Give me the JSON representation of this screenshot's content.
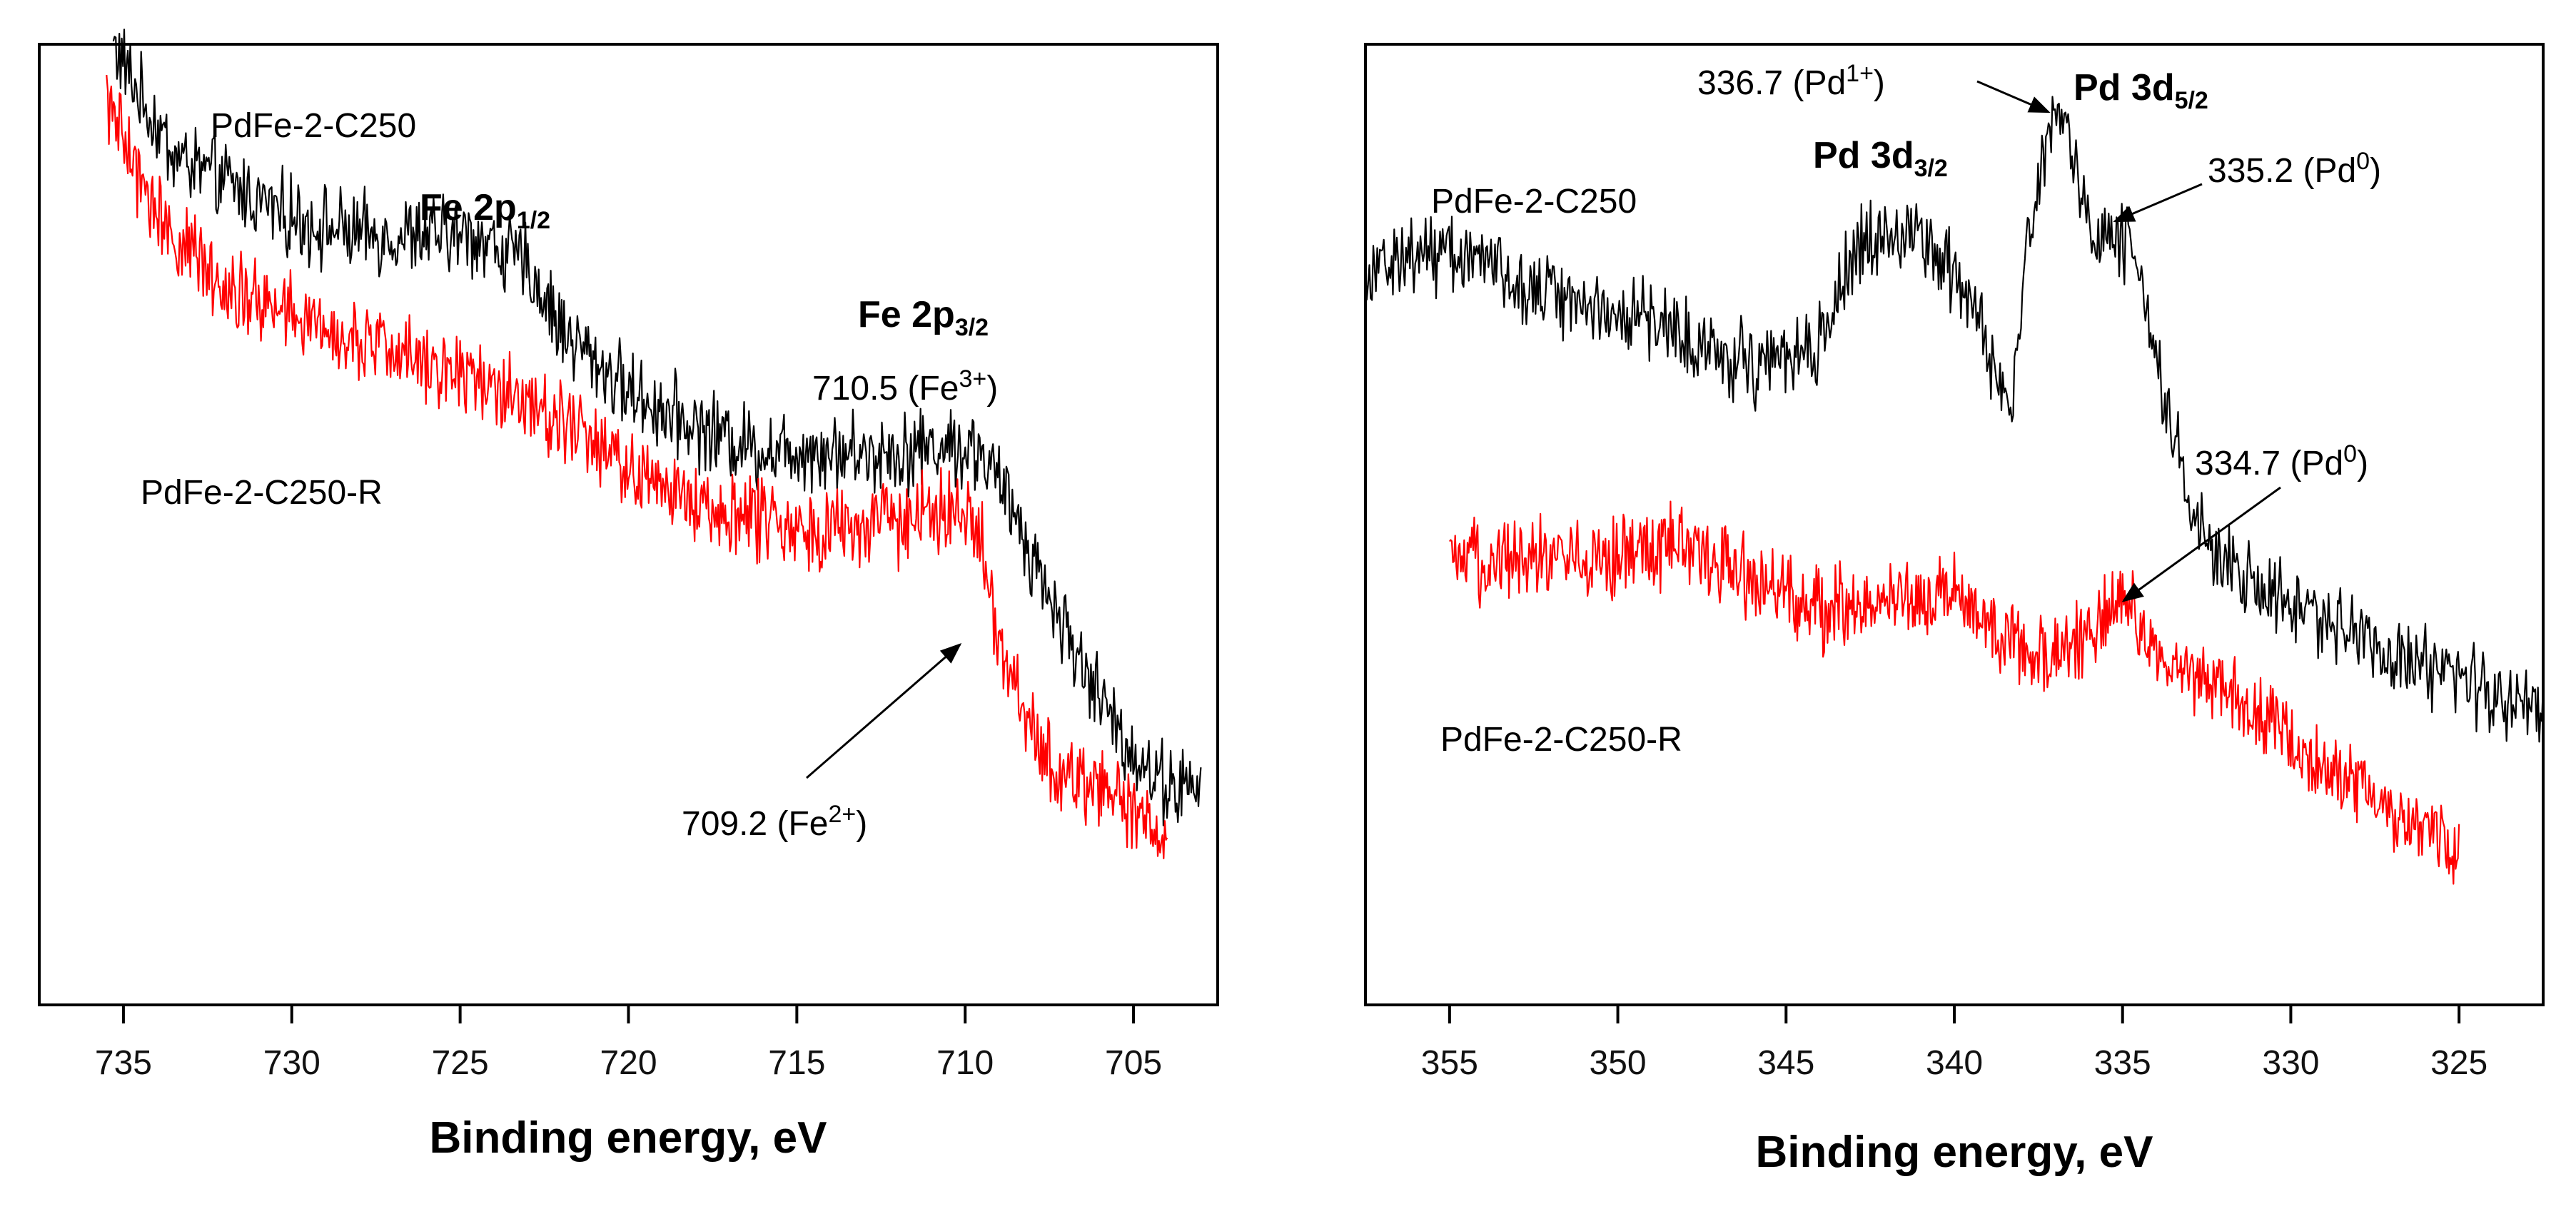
{
  "colors": {
    "black_series": "#000000",
    "red_series": "#ff0000"
  },
  "chart_data": [
    {
      "type": "line",
      "panel": "left",
      "title": "",
      "xlabel": "Binding energy, eV",
      "ylabel": "",
      "xlim": [
        737.5,
        702.5
      ],
      "ylim": [
        0,
        100
      ],
      "x_reversed": true,
      "grid": false,
      "x_ticks": [
        "735",
        "730",
        "725",
        "720",
        "715",
        "710",
        "705"
      ],
      "x_tick_values": [
        735,
        730,
        725,
        720,
        715,
        710,
        705
      ],
      "series": [
        {
          "name": "PdFe-2-C250",
          "color": "#000000",
          "x_range": [
            735.3,
            703.0
          ],
          "x": [
            735.3,
            734.5,
            733.5,
            732.0,
            730.0,
            728.0,
            726.0,
            724.5,
            723.0,
            722.0,
            720.0,
            718.0,
            716.0,
            714.5,
            713.0,
            711.5,
            710.5,
            709.5,
            708.5,
            707.5,
            706.5,
            705.5,
            704.5,
            703.8,
            703.0
          ],
          "values": [
            100,
            94,
            87.5,
            84.5,
            80.5,
            78.5,
            78.5,
            78.5,
            75,
            68,
            61,
            57,
            54.5,
            54.5,
            54,
            54.5,
            55,
            54,
            47,
            38,
            30,
            23,
            18,
            16.5,
            16
          ]
        },
        {
          "name": "PdFe-2-C250-R",
          "color": "#ff0000",
          "x_range": [
            735.5,
            704.0
          ],
          "x": [
            735.5,
            734.5,
            733.5,
            732.0,
            730.0,
            728.0,
            726.0,
            724.0,
            722.0,
            720.0,
            718.0,
            716.0,
            714.0,
            712.0,
            711.0,
            710.0,
            709.5,
            709.0,
            708.0,
            707.0,
            706.0,
            705.0,
            704.0
          ],
          "values": [
            94,
            84,
            78.5,
            73,
            69.5,
            66.5,
            64.5,
            62,
            58,
            52,
            48.5,
            46.5,
            45.5,
            46,
            47.5,
            46.5,
            44,
            33,
            22,
            17.5,
            16.5,
            14,
            11
          ]
        }
      ],
      "labels": {
        "black_series": "PdFe-2-C250",
        "red_series": "PdFe-2-C250-R",
        "peak1_main": "Fe 2p",
        "peak1_sub": "1/2",
        "peak2_main": "Fe 2p",
        "peak2_sub": "3/2",
        "fe3_value": "710.5 (Fe",
        "fe3_sup": "3+",
        "fe3_close": ")",
        "fe2_value": "709.2 (Fe",
        "fe2_sup": "2+",
        "fe2_close": ")"
      }
    },
    {
      "type": "line",
      "panel": "right",
      "title": "",
      "xlabel": "Binding energy, eV",
      "ylabel": "",
      "xlim": [
        357.5,
        322.5
      ],
      "ylim": [
        0,
        100
      ],
      "x_reversed": true,
      "grid": false,
      "x_ticks": [
        "355",
        "350",
        "345",
        "340",
        "335",
        "330",
        "325"
      ],
      "x_tick_values": [
        355,
        350,
        345,
        340,
        335,
        330,
        325
      ],
      "series": [
        {
          "name": "PdFe-2-C250",
          "color": "#000000",
          "x_range": [
            357.5,
            322.5
          ],
          "x": [
            357.5,
            355.0,
            352.0,
            349.0,
            346.0,
            344.0,
            343.0,
            341.5,
            340.0,
            339.0,
            338.3,
            337.8,
            337.0,
            336.5,
            336.0,
            335.2,
            334.5,
            333.8,
            333.0,
            332.0,
            330.0,
            328.0,
            326.0,
            324.0,
            322.5
          ],
          "values": [
            75,
            77,
            72,
            69,
            64,
            66,
            77,
            79,
            74,
            66,
            58,
            80,
            93,
            88,
            79,
            79,
            75,
            61,
            48,
            41,
            37,
            34,
            30,
            27,
            26
          ]
        },
        {
          "name": "PdFe-2-C250-R",
          "color": "#ff0000",
          "x_range": [
            355.0,
            325.0
          ],
          "x": [
            355.0,
            352.0,
            350.0,
            348.0,
            346.0,
            344.0,
            342.0,
            340.0,
            338.5,
            337.0,
            336.0,
            335.0,
            334.0,
            333.0,
            332.0,
            331.0,
            330.0,
            329.0,
            328.0,
            327.0,
            326.0,
            325.0
          ],
          "values": [
            41,
            43,
            42,
            44,
            40,
            36,
            38,
            38,
            33,
            31,
            34,
            38,
            31,
            29,
            28,
            25,
            22,
            18,
            17,
            13,
            12,
            9
          ]
        }
      ],
      "labels": {
        "black_series": "PdFe-2-C250",
        "red_series": "PdFe-2-C250-R",
        "d32_main": "Pd 3d",
        "d32_sub": "3/2",
        "d52_main": "Pd 3d",
        "d52_sub": "5/2",
        "pd1_value": "336.7 (Pd",
        "pd1_sup": "1+",
        "pd1_close": ")",
        "pd0a_value": "335.2 (Pd",
        "pd0a_sup": "0",
        "pd0a_close": ")",
        "pd0b_value": "334.7 (Pd",
        "pd0b_sup": "0",
        "pd0b_close": ")"
      }
    }
  ]
}
